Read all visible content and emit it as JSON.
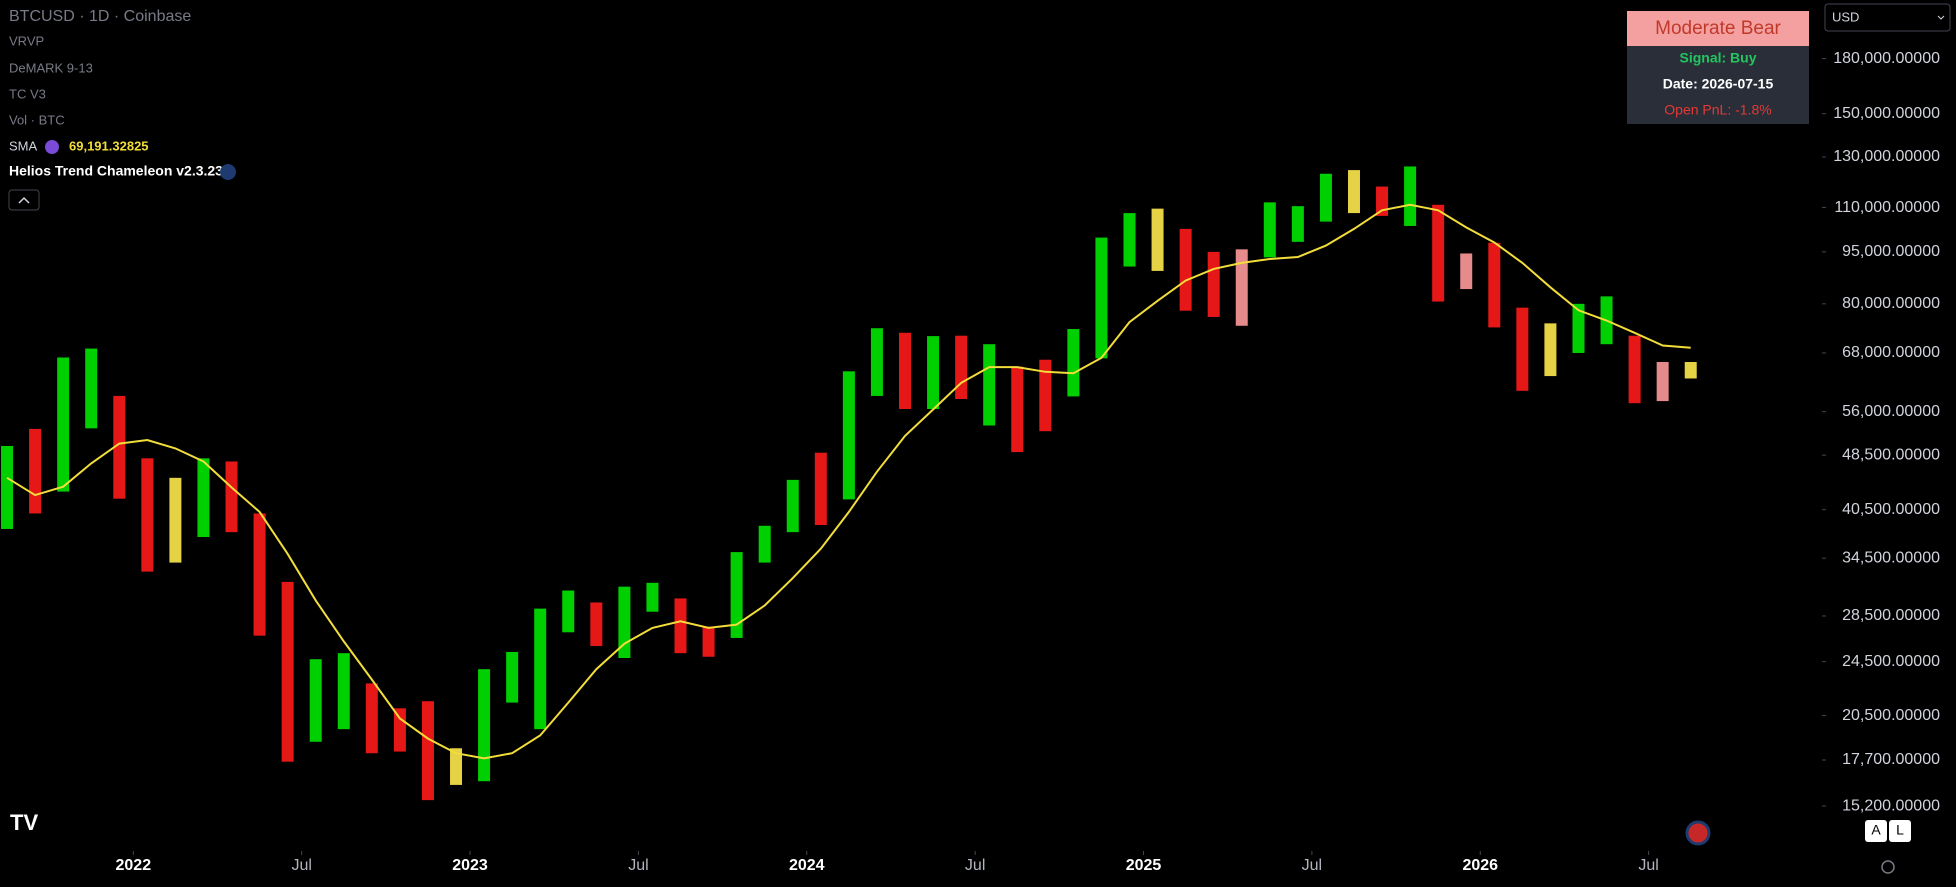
{
  "symbol": "BTCUSD · 1D · Coinbase",
  "indicators": [
    "VRVP",
    "DeMARK 9-13",
    "TC V3",
    "Vol · BTC"
  ],
  "strategy": "Helios Trend Chameleon v2.3.23",
  "panel": {
    "title": "Moderate Bear",
    "signal": "Signal: Buy",
    "date": "Date: 2026-07-15",
    "pnl": "Open PnL: -1.8%"
  },
  "currency": "USD",
  "buttons": [
    "A",
    "L"
  ],
  "chart_data": {
    "type": "range",
    "log_scale": true,
    "x": [
      "2021-08",
      "2021-09",
      "2021-10",
      "2021-11",
      "2021-12",
      "2022-01",
      "2022-02",
      "2022-03",
      "2022-04",
      "2022-05",
      "2022-06",
      "2022-07",
      "2022-08",
      "2022-09",
      "2022-10",
      "2022-11",
      "2022-12",
      "2023-01",
      "2023-02",
      "2023-03",
      "2023-04",
      "2023-05",
      "2023-06",
      "2023-07",
      "2023-08",
      "2023-09",
      "2023-10",
      "2023-11",
      "2023-12",
      "2024-01",
      "2024-02",
      "2024-03",
      "2024-04",
      "2024-05",
      "2024-06",
      "2024-07",
      "2024-08",
      "2024-09",
      "2024-10",
      "2024-11",
      "2024-12",
      "2025-01",
      "2025-02",
      "2025-03",
      "2025-04",
      "2025-05",
      "2025-06",
      "2025-07",
      "2025-08",
      "2025-09",
      "2025-10",
      "2025-11",
      "2025-12",
      "2026-01",
      "2026-02",
      "2026-03",
      "2026-04",
      "2026-05",
      "2026-06",
      "2026-07",
      "2026-08"
    ],
    "series": [
      {
        "name": "BTCUSD · 1D · Coinbase",
        "high": [
          50000,
          52900,
          67000,
          69000,
          59000,
          48000,
          45000,
          48000,
          47500,
          40000,
          31900,
          24700,
          25200,
          22800,
          21000,
          21500,
          18400,
          23900,
          25300,
          29200,
          31000,
          29800,
          31400,
          31800,
          30200,
          27500,
          35200,
          38400,
          44700,
          48900,
          64000,
          73800,
          72700,
          71900,
          72000,
          70000,
          65000,
          66500,
          73600,
          99600,
          108000,
          109600,
          102500,
          95000,
          95800,
          111900,
          110500,
          123000,
          124500,
          117900,
          126000,
          111000,
          94500,
          97900,
          79000,
          75000,
          80000,
          82000,
          72000,
          66000,
          66000
        ],
        "low": [
          38000,
          40000,
          43000,
          53000,
          42000,
          33000,
          34000,
          37000,
          37600,
          26700,
          17600,
          18800,
          19600,
          18100,
          18200,
          15500,
          16300,
          16500,
          21400,
          19600,
          27000,
          25800,
          24800,
          28900,
          25200,
          24900,
          26500,
          34000,
          37600,
          38500,
          41900,
          59000,
          56500,
          56500,
          58400,
          53500,
          49000,
          52500,
          58900,
          66800,
          90500,
          89200,
          78200,
          76600,
          74400,
          93300,
          98200,
          105000,
          108000,
          107000,
          103500,
          80600,
          84000,
          74000,
          60000,
          63000,
          68000,
          70000,
          57600,
          58000,
          62500
        ],
        "colors": [
          "#00e600",
          "#ff1a1a",
          "#00e600",
          "#00e600",
          "#ff1a1a",
          "#ff1a1a",
          "#ffe94d",
          "#00e600",
          "#ff1a1a",
          "#ff1a1a",
          "#ff1a1a",
          "#00e600",
          "#00e600",
          "#ff1a1a",
          "#ff1a1a",
          "#ff1a1a",
          "#ffe94d",
          "#00e600",
          "#00e600",
          "#00e600",
          "#00e600",
          "#ff1a1a",
          "#00e600",
          "#00e600",
          "#ff1a1a",
          "#ff1a1a",
          "#00e600",
          "#00e600",
          "#00e600",
          "#ff1a1a",
          "#00e600",
          "#00e600",
          "#ff1a1a",
          "#00e600",
          "#ff1a1a",
          "#00e600",
          "#ff1a1a",
          "#ff1a1a",
          "#00e600",
          "#00e600",
          "#00e600",
          "#ffe94d",
          "#ff1a1a",
          "#ff1a1a",
          "#ff9a9a",
          "#00e600",
          "#00e600",
          "#00e600",
          "#ffe94d",
          "#ff1a1a",
          "#00e600",
          "#ff1a1a",
          "#ff9a9a",
          "#ff1a1a",
          "#ff1a1a",
          "#ffe94d",
          "#00e600",
          "#00e600",
          "#ff1a1a",
          "#ff9a9a",
          "#ffe94d"
        ]
      },
      {
        "name": "SMA",
        "color": "#f2dd3a",
        "legend_value": "69,191.32825",
        "values": [
          45000,
          42500,
          43700,
          47200,
          50400,
          51000,
          49600,
          47500,
          43600,
          40200,
          35000,
          30000,
          26200,
          23100,
          20300,
          19000,
          18100,
          17800,
          18100,
          19200,
          21400,
          23900,
          26000,
          27400,
          28000,
          27400,
          27700,
          29500,
          32300,
          35600,
          40200,
          45900,
          51700,
          56400,
          61600,
          64900,
          64900,
          63900,
          63600,
          66900,
          75300,
          80800,
          86400,
          89800,
          91600,
          92800,
          93400,
          97000,
          102500,
          109000,
          111000,
          109000,
          103000,
          98000,
          91600,
          84500,
          78300,
          75700,
          72700,
          69700,
          69191.32825
        ]
      }
    ],
    "xlim": [
      "2021-08",
      "2027-01"
    ],
    "xticks": [
      {
        "value": "2022-01",
        "label": "2022"
      },
      {
        "value": "2022-07",
        "label": "Jul"
      },
      {
        "value": "2023-01",
        "label": "2023"
      },
      {
        "value": "2023-07",
        "label": "Jul"
      },
      {
        "value": "2024-01",
        "label": "2024"
      },
      {
        "value": "2024-07",
        "label": "Jul"
      },
      {
        "value": "2025-01",
        "label": "2025"
      },
      {
        "value": "2025-07",
        "label": "Jul"
      },
      {
        "value": "2026-01",
        "label": "2026"
      },
      {
        "value": "2026-07",
        "label": "Jul"
      }
    ],
    "ylim": [
      13100,
      218500
    ],
    "yticks": [
      {
        "value": 180000,
        "label": "180,000.00000"
      },
      {
        "value": 150000,
        "label": "150,000.00000"
      },
      {
        "value": 130000,
        "label": "130,000.00000"
      },
      {
        "value": 110000,
        "label": "110,000.00000"
      },
      {
        "value": 95000,
        "label": "95,000.00000"
      },
      {
        "value": 80000,
        "label": "80,000.00000"
      },
      {
        "value": 68000,
        "label": "68,000.00000"
      },
      {
        "value": 56000,
        "label": "56,000.00000"
      },
      {
        "value": 48500,
        "label": "48,500.00000"
      },
      {
        "value": 40500,
        "label": "40,500.00000"
      },
      {
        "value": 34500,
        "label": "34,500.00000"
      },
      {
        "value": 28500,
        "label": "28,500.00000"
      },
      {
        "value": 24500,
        "label": "24,500.00000"
      },
      {
        "value": 20500,
        "label": "20,500.00000"
      },
      {
        "value": 17700,
        "label": "17,700.00000"
      },
      {
        "value": 15200,
        "label": "15,200.00000"
      }
    ],
    "grid": false
  }
}
